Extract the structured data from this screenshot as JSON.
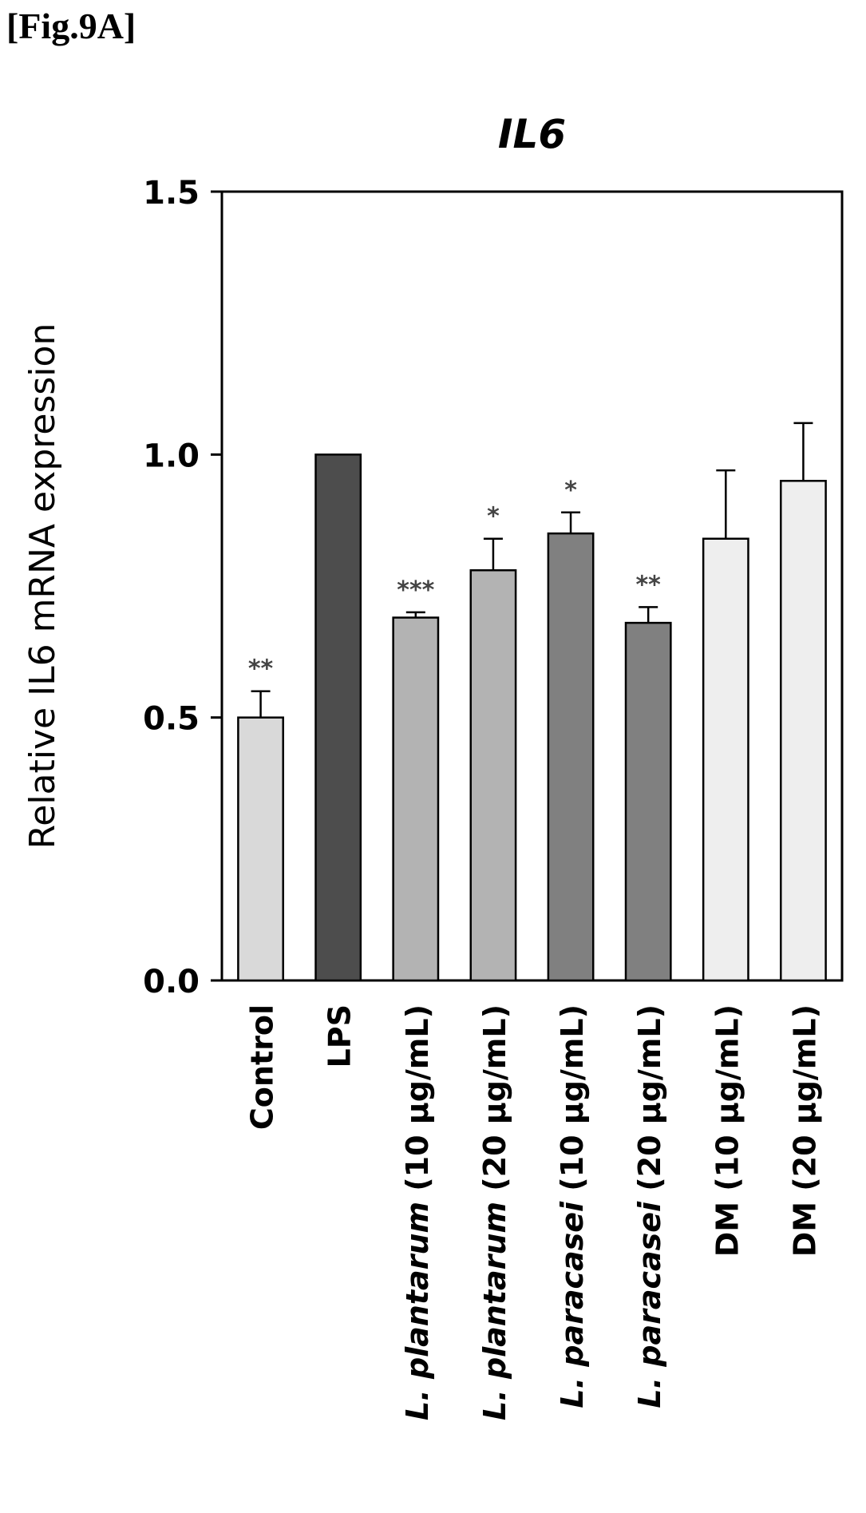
{
  "figure_label": "[Fig.9A]",
  "chart_data": {
    "type": "bar",
    "title": "IL6",
    "ylabel": "Relative IL6 mRNA expression",
    "xlabel": "",
    "ylim": [
      0,
      1.5
    ],
    "yticks": [
      "0.0",
      "0.5",
      "1.0",
      "1.5"
    ],
    "grid": false,
    "categories": [
      {
        "italic": "",
        "normal": "Control"
      },
      {
        "italic": "",
        "normal": "LPS"
      },
      {
        "italic": "L. plantarum",
        "normal": " (10 μg/mL)"
      },
      {
        "italic": "L. plantarum",
        "normal": " (20 μg/mL)"
      },
      {
        "italic": "L. paracasei",
        "normal": " (10 μg/mL)"
      },
      {
        "italic": "L. paracasei",
        "normal": " (20 μg/mL)"
      },
      {
        "italic": "",
        "normal": "DM (10 μg/mL)"
      },
      {
        "italic": "",
        "normal": "DM (20 μg/mL)"
      }
    ],
    "values": [
      0.5,
      1.0,
      0.69,
      0.78,
      0.85,
      0.68,
      0.84,
      0.95
    ],
    "errors": [
      0.05,
      0.0,
      0.01,
      0.06,
      0.04,
      0.03,
      0.13,
      0.11
    ],
    "significance": [
      "**",
      "",
      "***",
      "*",
      "*",
      "**",
      "",
      ""
    ],
    "bar_colors": [
      "#d9d9d9",
      "#4d4d4d",
      "#b3b3b3",
      "#b3b3b3",
      "#808080",
      "#808080",
      "#eeeeee",
      "#eeeeee"
    ]
  }
}
